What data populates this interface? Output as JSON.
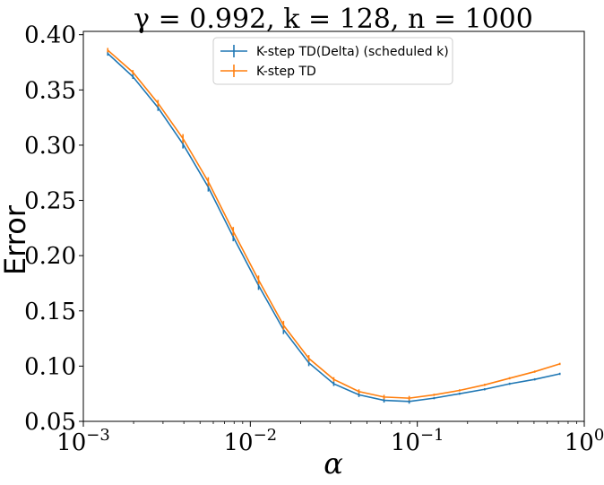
{
  "chart_data": {
    "type": "line",
    "title": "γ = 0.992, k = 128, n = 1000",
    "xlabel": "α",
    "ylabel": "Error",
    "xscale": "log",
    "xlim": [
      0.001,
      1
    ],
    "ylim": [
      0.05,
      0.403
    ],
    "x_ticks": [
      {
        "value": 0.001,
        "base": "10",
        "exp": "−3"
      },
      {
        "value": 0.01,
        "base": "10",
        "exp": "−2"
      },
      {
        "value": 0.1,
        "base": "10",
        "exp": "−1"
      },
      {
        "value": 1,
        "base": "10",
        "exp": "0"
      }
    ],
    "y_ticks": [
      {
        "value": 0.05,
        "label": "0.05"
      },
      {
        "value": 0.1,
        "label": "0.10"
      },
      {
        "value": 0.15,
        "label": "0.15"
      },
      {
        "value": 0.2,
        "label": "0.20"
      },
      {
        "value": 0.25,
        "label": "0.25"
      },
      {
        "value": 0.3,
        "label": "0.30"
      },
      {
        "value": 0.35,
        "label": "0.35"
      },
      {
        "value": 0.4,
        "label": "0.40"
      }
    ],
    "grid": false,
    "legend_position": "top-center",
    "series": [
      {
        "name": "K-step TD(Delta) (scheduled k)",
        "color": "#1f77b4",
        "x": [
          0.0014,
          0.00198,
          0.0028,
          0.00395,
          0.0056,
          0.0079,
          0.0112,
          0.0158,
          0.0224,
          0.0316,
          0.0447,
          0.0632,
          0.0894,
          0.126,
          0.179,
          0.253,
          0.357,
          0.505,
          0.714
        ],
        "y": [
          0.383,
          0.362,
          0.334,
          0.301,
          0.262,
          0.217,
          0.173,
          0.133,
          0.103,
          0.084,
          0.074,
          0.069,
          0.068,
          0.071,
          0.075,
          0.079,
          0.084,
          0.088,
          0.093
        ],
        "err": [
          0.002,
          0.002,
          0.003,
          0.004,
          0.004,
          0.004,
          0.004,
          0.004,
          0.003,
          0.002,
          0.002,
          0.002,
          0.002,
          0.001,
          0.001,
          0.001,
          0.001,
          0.001,
          0.001
        ]
      },
      {
        "name": "K-step TD",
        "color": "#ff7f0e",
        "x": [
          0.0014,
          0.00198,
          0.0028,
          0.00395,
          0.0056,
          0.0079,
          0.0112,
          0.0158,
          0.0224,
          0.0316,
          0.0447,
          0.0632,
          0.0894,
          0.126,
          0.179,
          0.253,
          0.357,
          0.505,
          0.714
        ],
        "y": [
          0.386,
          0.366,
          0.338,
          0.306,
          0.267,
          0.222,
          0.178,
          0.137,
          0.107,
          0.088,
          0.077,
          0.072,
          0.071,
          0.074,
          0.078,
          0.083,
          0.089,
          0.095,
          0.102
        ],
        "err": [
          0.002,
          0.002,
          0.003,
          0.004,
          0.004,
          0.004,
          0.004,
          0.004,
          0.003,
          0.002,
          0.002,
          0.002,
          0.002,
          0.001,
          0.001,
          0.001,
          0.001,
          0.001,
          0.001
        ]
      }
    ]
  }
}
